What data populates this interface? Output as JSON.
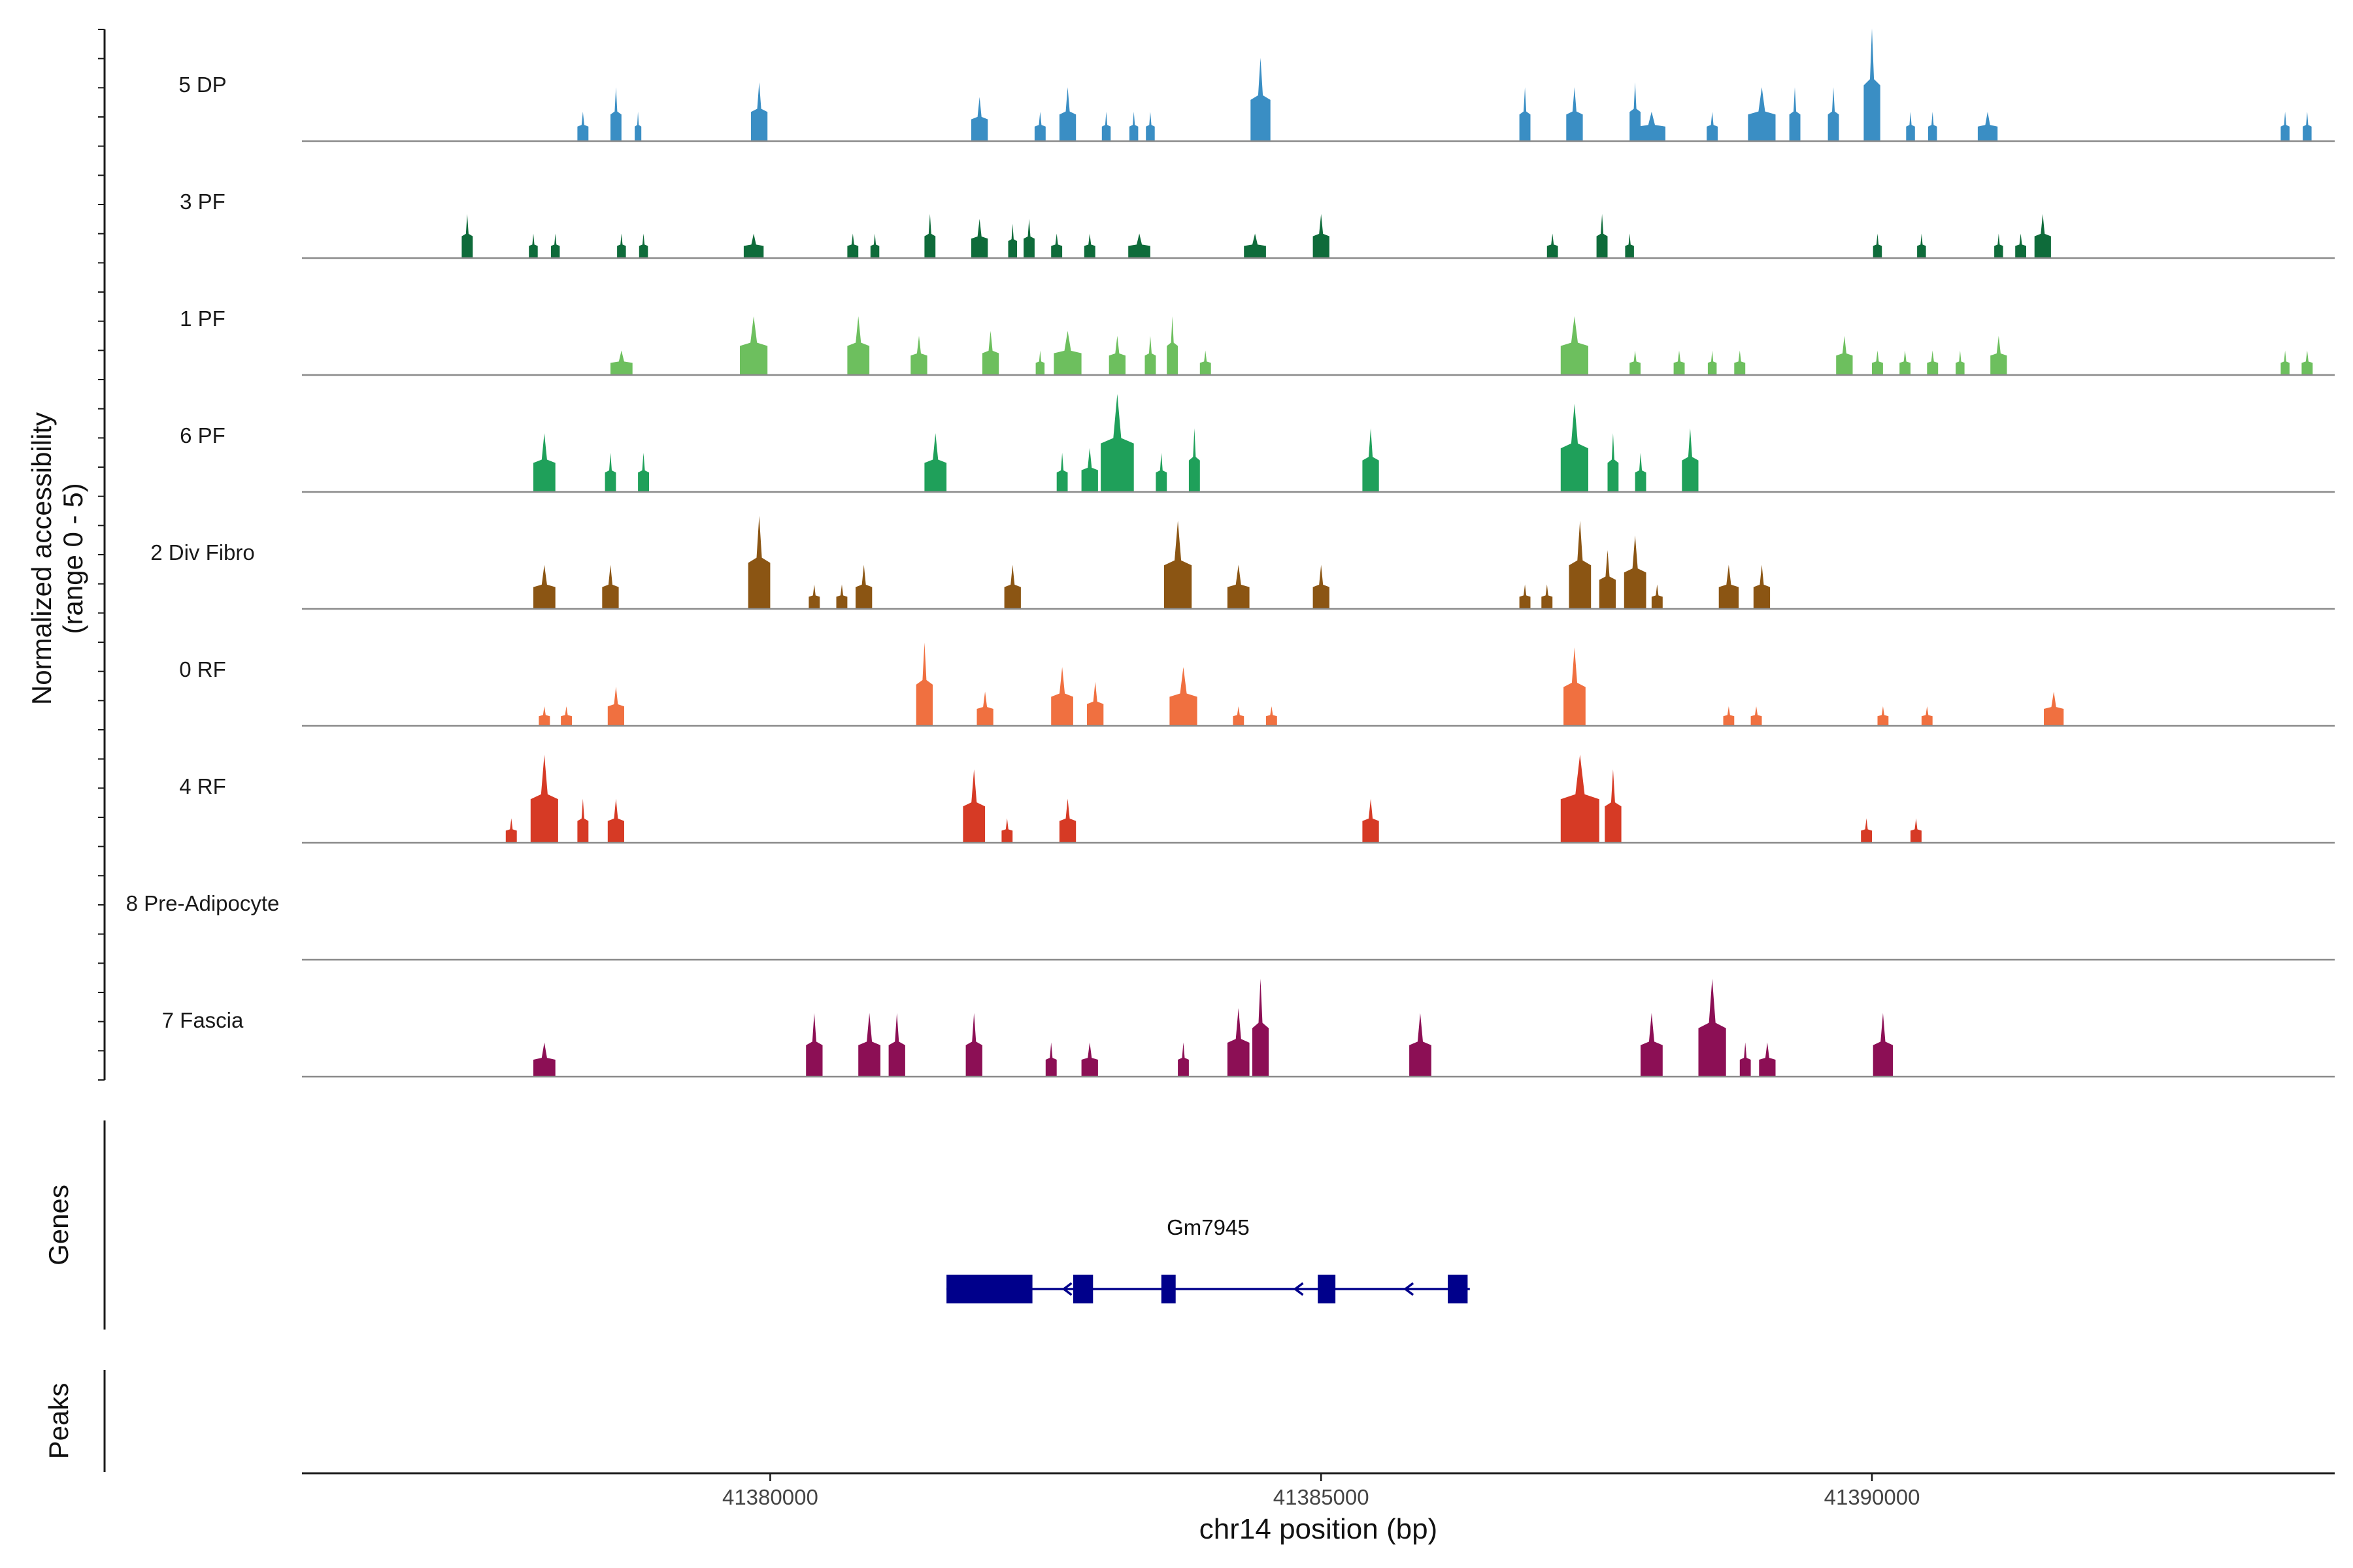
{
  "chart_data": {
    "type": "area",
    "chromosome": "chr14",
    "x_range": [
      41375750,
      41394200
    ],
    "y_axis": {
      "label_line1": "Normalized accessibility",
      "label_line2": "(range 0 - 5)",
      "range": [
        0,
        5
      ]
    },
    "x_axis": {
      "label": "chr14 position (bp)",
      "ticks": [
        41380000,
        41385000,
        41390000
      ],
      "tick_labels": [
        "41380000",
        "41385000",
        "41390000"
      ]
    },
    "tracks": [
      {
        "name": "5 DP",
        "color": "#3a8ec4",
        "peaks": [
          [
            41378300,
            100,
            0.3
          ],
          [
            41378600,
            100,
            0.55
          ],
          [
            41378800,
            60,
            0.3
          ],
          [
            41379900,
            150,
            0.6
          ],
          [
            41381900,
            150,
            0.45
          ],
          [
            41382450,
            100,
            0.3
          ],
          [
            41382700,
            150,
            0.55
          ],
          [
            41383050,
            80,
            0.3
          ],
          [
            41383300,
            80,
            0.3
          ],
          [
            41383450,
            80,
            0.3
          ],
          [
            41384450,
            180,
            0.85
          ],
          [
            41386850,
            100,
            0.55
          ],
          [
            41387300,
            150,
            0.55
          ],
          [
            41387850,
            100,
            0.6
          ],
          [
            41388000,
            250,
            0.3
          ],
          [
            41388550,
            100,
            0.3
          ],
          [
            41389000,
            250,
            0.55
          ],
          [
            41389300,
            100,
            0.55
          ],
          [
            41389650,
            100,
            0.55
          ],
          [
            41390000,
            150,
            1.15
          ],
          [
            41390350,
            80,
            0.3
          ],
          [
            41390550,
            80,
            0.3
          ],
          [
            41391050,
            180,
            0.3
          ],
          [
            41393750,
            80,
            0.3
          ],
          [
            41393950,
            80,
            0.3
          ]
        ]
      },
      {
        "name": "3 PF",
        "color": "#0e6b3a",
        "peaks": [
          [
            41377250,
            100,
            0.45
          ],
          [
            41377850,
            80,
            0.25
          ],
          [
            41378050,
            80,
            0.25
          ],
          [
            41378650,
            80,
            0.25
          ],
          [
            41378850,
            80,
            0.25
          ],
          [
            41379850,
            180,
            0.25
          ],
          [
            41380750,
            100,
            0.25
          ],
          [
            41380950,
            80,
            0.25
          ],
          [
            41381450,
            100,
            0.45
          ],
          [
            41381900,
            150,
            0.4
          ],
          [
            41382200,
            80,
            0.35
          ],
          [
            41382350,
            100,
            0.4
          ],
          [
            41382600,
            100,
            0.25
          ],
          [
            41382900,
            100,
            0.25
          ],
          [
            41383350,
            200,
            0.25
          ],
          [
            41384400,
            200,
            0.25
          ],
          [
            41385000,
            150,
            0.45
          ],
          [
            41387100,
            100,
            0.25
          ],
          [
            41387550,
            100,
            0.45
          ],
          [
            41387800,
            80,
            0.25
          ],
          [
            41390050,
            80,
            0.25
          ],
          [
            41390450,
            80,
            0.25
          ],
          [
            41391150,
            80,
            0.25
          ],
          [
            41391350,
            100,
            0.25
          ],
          [
            41391550,
            150,
            0.45
          ]
        ]
      },
      {
        "name": "1 PF",
        "color": "#6dbf5e",
        "peaks": [
          [
            41378650,
            200,
            0.25
          ],
          [
            41379850,
            250,
            0.6
          ],
          [
            41380800,
            200,
            0.6
          ],
          [
            41381350,
            150,
            0.4
          ],
          [
            41382000,
            150,
            0.45
          ],
          [
            41382450,
            80,
            0.25
          ],
          [
            41382700,
            250,
            0.45
          ],
          [
            41383150,
            150,
            0.4
          ],
          [
            41383450,
            100,
            0.4
          ],
          [
            41383650,
            100,
            0.6
          ],
          [
            41383950,
            100,
            0.25
          ],
          [
            41387300,
            250,
            0.6
          ],
          [
            41387850,
            100,
            0.25
          ],
          [
            41388250,
            100,
            0.25
          ],
          [
            41388550,
            80,
            0.25
          ],
          [
            41388800,
            100,
            0.25
          ],
          [
            41389750,
            150,
            0.4
          ],
          [
            41390050,
            100,
            0.25
          ],
          [
            41390300,
            100,
            0.25
          ],
          [
            41390550,
            100,
            0.25
          ],
          [
            41390800,
            80,
            0.25
          ],
          [
            41391150,
            150,
            0.4
          ],
          [
            41393750,
            80,
            0.25
          ],
          [
            41393950,
            100,
            0.25
          ]
        ]
      },
      {
        "name": "6 PF",
        "color": "#1fa05a",
        "peaks": [
          [
            41377950,
            200,
            0.6
          ],
          [
            41378550,
            100,
            0.4
          ],
          [
            41378850,
            100,
            0.4
          ],
          [
            41381500,
            200,
            0.6
          ],
          [
            41382650,
            100,
            0.4
          ],
          [
            41382900,
            150,
            0.45
          ],
          [
            41383150,
            300,
            1.0
          ],
          [
            41383550,
            100,
            0.4
          ],
          [
            41383850,
            100,
            0.65
          ],
          [
            41385450,
            150,
            0.65
          ],
          [
            41387300,
            250,
            0.9
          ],
          [
            41387650,
            100,
            0.6
          ],
          [
            41387900,
            100,
            0.4
          ],
          [
            41388350,
            150,
            0.65
          ]
        ]
      },
      {
        "name": "2 Div Fibro",
        "color": "#8b5513",
        "peaks": [
          [
            41377950,
            200,
            0.45
          ],
          [
            41378550,
            150,
            0.45
          ],
          [
            41379900,
            200,
            0.95
          ],
          [
            41380400,
            100,
            0.25
          ],
          [
            41380650,
            100,
            0.25
          ],
          [
            41380850,
            150,
            0.45
          ],
          [
            41382200,
            150,
            0.45
          ],
          [
            41383700,
            250,
            0.9
          ],
          [
            41384250,
            200,
            0.45
          ],
          [
            41385000,
            150,
            0.45
          ],
          [
            41386850,
            100,
            0.25
          ],
          [
            41387050,
            100,
            0.25
          ],
          [
            41387350,
            200,
            0.9
          ],
          [
            41387600,
            150,
            0.6
          ],
          [
            41387850,
            200,
            0.75
          ],
          [
            41388050,
            100,
            0.25
          ],
          [
            41388700,
            180,
            0.45
          ],
          [
            41389000,
            150,
            0.45
          ]
        ]
      },
      {
        "name": "0 RF",
        "color": "#f07040",
        "peaks": [
          [
            41377950,
            100,
            0.2
          ],
          [
            41378150,
            100,
            0.2
          ],
          [
            41378600,
            150,
            0.4
          ],
          [
            41381400,
            150,
            0.85
          ],
          [
            41381950,
            150,
            0.35
          ],
          [
            41382650,
            200,
            0.6
          ],
          [
            41382950,
            150,
            0.45
          ],
          [
            41383750,
            250,
            0.6
          ],
          [
            41384250,
            100,
            0.2
          ],
          [
            41384550,
            100,
            0.2
          ],
          [
            41387300,
            200,
            0.8
          ],
          [
            41388700,
            100,
            0.2
          ],
          [
            41388950,
            100,
            0.2
          ],
          [
            41390100,
            100,
            0.2
          ],
          [
            41390500,
            100,
            0.2
          ],
          [
            41391650,
            180,
            0.35
          ]
        ]
      },
      {
        "name": "4 RF",
        "color": "#d63a25",
        "peaks": [
          [
            41377650,
            100,
            0.25
          ],
          [
            41377950,
            250,
            0.9
          ],
          [
            41378300,
            100,
            0.45
          ],
          [
            41378600,
            150,
            0.45
          ],
          [
            41381850,
            200,
            0.75
          ],
          [
            41382150,
            100,
            0.25
          ],
          [
            41382700,
            150,
            0.45
          ],
          [
            41385450,
            150,
            0.45
          ],
          [
            41387350,
            350,
            0.9
          ],
          [
            41387650,
            150,
            0.75
          ],
          [
            41389950,
            100,
            0.25
          ],
          [
            41390400,
            100,
            0.25
          ]
        ]
      },
      {
        "name": "8 Pre-Adipocyte",
        "color": "#555555",
        "peaks": []
      },
      {
        "name": "7 Fascia",
        "color": "#8c0f55",
        "peaks": [
          [
            41377950,
            200,
            0.35
          ],
          [
            41380400,
            150,
            0.65
          ],
          [
            41380900,
            200,
            0.65
          ],
          [
            41381150,
            150,
            0.65
          ],
          [
            41381850,
            150,
            0.65
          ],
          [
            41382550,
            100,
            0.35
          ],
          [
            41382900,
            150,
            0.35
          ],
          [
            41383750,
            100,
            0.35
          ],
          [
            41384250,
            200,
            0.7
          ],
          [
            41384450,
            150,
            1.0
          ],
          [
            41385900,
            200,
            0.65
          ],
          [
            41388000,
            200,
            0.65
          ],
          [
            41388550,
            250,
            1.0
          ],
          [
            41388850,
            100,
            0.35
          ],
          [
            41389050,
            150,
            0.35
          ],
          [
            41390100,
            180,
            0.65
          ]
        ]
      }
    ],
    "gene": {
      "name": "Gm7945",
      "strand": "-",
      "start": 41381600,
      "end": 41386350,
      "exons": [
        [
          41381600,
          41382380
        ],
        [
          41382750,
          41382930
        ],
        [
          41383550,
          41383680
        ],
        [
          41384970,
          41385130
        ],
        [
          41386150,
          41386330
        ]
      ],
      "strand_arrows": [
        41382700,
        41384800,
        41385800
      ]
    },
    "panels": {
      "genes_label": "Genes",
      "peaks_label": "Peaks"
    }
  }
}
